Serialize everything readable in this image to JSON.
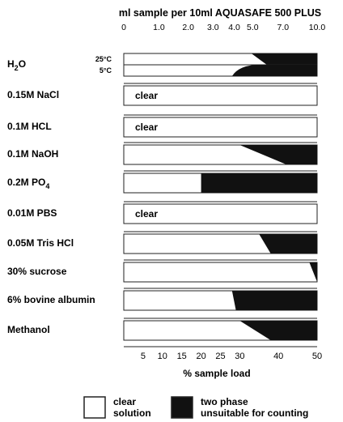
{
  "chart_data": {
    "type": "phase-diagram",
    "title": "ml sample per 10ml AQUASAFE 500 PLUS",
    "xlabel": "% sample load",
    "top_ticks": [
      "0",
      "1.0",
      "2.0",
      "3.0",
      "4.0",
      "5.0",
      "7.0",
      "10.0"
    ],
    "top_tick_positions": [
      0,
      9.09,
      16.67,
      23.08,
      28.57,
      33.33,
      41.18,
      50
    ],
    "bottom_ticks": [
      5,
      10,
      15,
      20,
      25,
      30,
      40,
      50
    ],
    "xlim": [
      0,
      50
    ],
    "temperature_labels": [
      "25°C",
      "5°C"
    ],
    "rows": [
      {
        "label": "H2O",
        "label_main": "H",
        "label_sub": "2",
        "label_rest": "O",
        "bands": [
          {
            "temperature": "25°C",
            "two_phase_from": 33,
            "two_phase_full": 37
          },
          {
            "temperature": "5°C",
            "two_phase_from": 28,
            "two_phase_full": 37
          }
        ]
      },
      {
        "label": "0.15M NaCl",
        "clear_text": "clear",
        "two_phase_from": null
      },
      {
        "label": "0.1M HCL",
        "clear_text": "clear",
        "two_phase_from": null
      },
      {
        "label": "0.1M NaOH",
        "two_phase_from": 30,
        "two_phase_full": 42
      },
      {
        "label": "0.2M PO4",
        "label_main": "0.2M PO",
        "label_sub": "4",
        "label_rest": "",
        "two_phase_from": 20,
        "two_phase_full": 20
      },
      {
        "label": "0.01M PBS",
        "clear_text": "clear",
        "two_phase_from": null
      },
      {
        "label": "0.05M Tris HCl",
        "two_phase_from": 35,
        "two_phase_full": 38
      },
      {
        "label": "30% sucrose",
        "two_phase_from": 48,
        "two_phase_full": 50
      },
      {
        "label": "6% bovine albumin",
        "two_phase_from": 28,
        "two_phase_full": 29
      },
      {
        "label": "Methanol",
        "two_phase_from": 30,
        "two_phase_full": 38
      }
    ],
    "legend": [
      {
        "label_line1": "clear",
        "label_line2": "solution",
        "color": "#ffffff"
      },
      {
        "label_line1": "two phase",
        "label_line2": "unsuitable for counting",
        "color": "#111111"
      }
    ]
  }
}
